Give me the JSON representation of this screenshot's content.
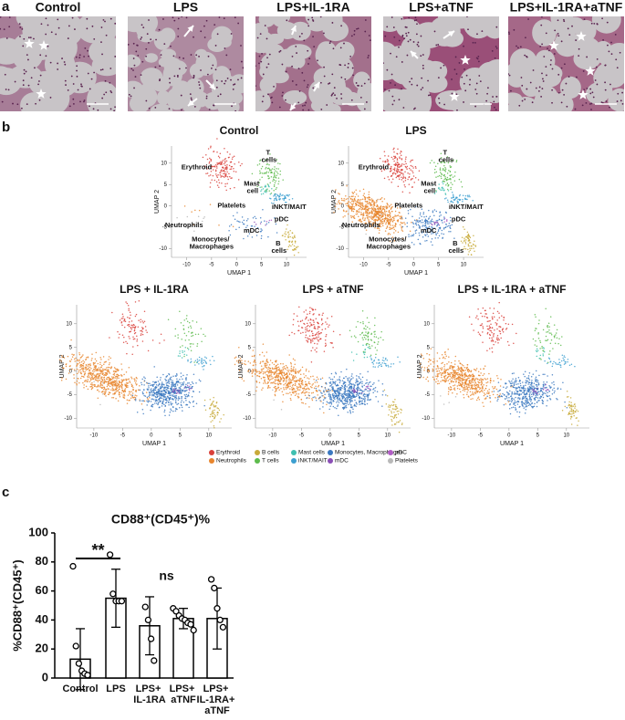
{
  "panel_labels": [
    "a",
    "b",
    "c"
  ],
  "histology": {
    "titles": [
      "Control",
      "LPS",
      "LPS+IL-1RA",
      "LPS+aTNF",
      "LPS+IL-1RA+aTNF"
    ]
  },
  "umap": {
    "titles": [
      "Control",
      "LPS",
      "LPS + IL-1RA",
      "LPS + aTNF",
      "LPS + IL-1RA + aTNF"
    ],
    "xlabel": "UMAP 1",
    "ylabel": "UMAP 2",
    "xlim": [
      -13,
      14
    ],
    "ylim": [
      -12,
      14
    ],
    "xticks": [
      -10,
      -5,
      0,
      5,
      10
    ],
    "yticks": [
      -10,
      -5,
      0,
      5,
      10
    ],
    "cluster_labels": [
      "Erythroid",
      "T cells",
      "Mast cell",
      "iNKT/MAIT",
      "Platelets",
      "Neutrophils",
      "pDC",
      "mDC",
      "Monocytes/ Macrophages",
      "B cells"
    ],
    "legend": [
      {
        "name": "Erythroid",
        "color": "#d9403a"
      },
      {
        "name": "Neutrophils",
        "color": "#e8862e"
      },
      {
        "name": "B cells",
        "color": "#c8aa3a"
      },
      {
        "name": "T cells",
        "color": "#5dbb4c"
      },
      {
        "name": "Mast cells",
        "color": "#3fbfb0"
      },
      {
        "name": "iNKT/MAIT",
        "color": "#3c9fd0"
      },
      {
        "name": "Monocytes, Macrophages",
        "color": "#3a78c0"
      },
      {
        "name": "mDC",
        "color": "#8a4fb5"
      },
      {
        "name": "pDC",
        "color": "#b05dc4"
      },
      {
        "name": "Platelets",
        "color": "#b8b8b8"
      }
    ]
  },
  "chart_data": {
    "type": "bar",
    "title": "CD88⁺(CD45⁺)%",
    "ylabel": "%CD88⁺(CD45⁺)",
    "categories": [
      "Control",
      "LPS",
      "LPS+ IL-1RA",
      "LPS+ aTNF",
      "LPS+ IL-1RA+ aTNF"
    ],
    "values": [
      13,
      55,
      36,
      41,
      41
    ],
    "errors": [
      21,
      20,
      20,
      7,
      21
    ],
    "points": [
      [
        77,
        22,
        10,
        5,
        3,
        2
      ],
      [
        85,
        58,
        53,
        53,
        53
      ],
      [
        49,
        40,
        27,
        12
      ],
      [
        48,
        46,
        43,
        41,
        40,
        38,
        37,
        33
      ],
      [
        68,
        62,
        48,
        40,
        35
      ]
    ],
    "ylim": [
      0,
      100
    ],
    "yticks": [
      0,
      20,
      40,
      60,
      80,
      100
    ],
    "annotations": [
      "**",
      "ns"
    ]
  }
}
